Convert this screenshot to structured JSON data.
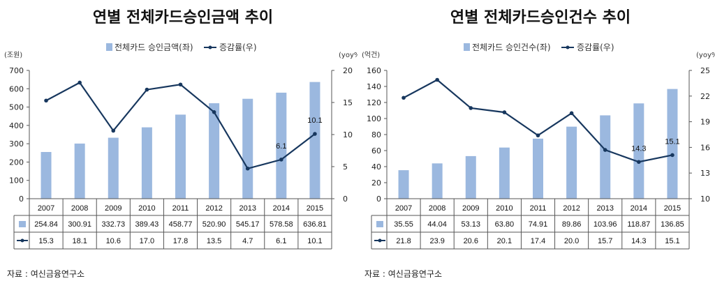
{
  "colors": {
    "bar": "#9bb8df",
    "line": "#17375e",
    "grid": "#cccccc",
    "axis": "#555555"
  },
  "chart_data": [
    {
      "type": "bar",
      "title": "연별 전체카드승인금액 추이",
      "y_left_unit": "(조원)",
      "y_right_unit": "(yoy%)",
      "legend_bar": "전체카드 승인금액(좌)",
      "legend_line": "증감률(우)",
      "categories": [
        "2007",
        "2008",
        "2009",
        "2010",
        "2011",
        "2012",
        "2013",
        "2014",
        "2015"
      ],
      "series": [
        {
          "name": "전체카드 승인금액(좌)",
          "type": "bar",
          "axis": "left",
          "values": [
            254.84,
            300.91,
            332.73,
            389.43,
            458.77,
            520.9,
            545.17,
            578.58,
            636.81
          ],
          "labels": [
            "254.84",
            "300.91",
            "332.73",
            "389.43",
            "458.77",
            "520.90",
            "545.17",
            "578.58",
            "636.81"
          ]
        },
        {
          "name": "증감률(우)",
          "type": "line",
          "axis": "right",
          "values": [
            15.3,
            18.1,
            10.6,
            17.0,
            17.8,
            13.5,
            4.7,
            6.1,
            10.1
          ],
          "labels": [
            "15.3",
            "18.1",
            "10.6",
            "17.0",
            "17.8",
            "13.5",
            "4.7",
            "6.1",
            "10.1"
          ]
        }
      ],
      "ylim_left": [
        0,
        700
      ],
      "ytick_left": [
        0,
        100,
        200,
        300,
        400,
        500,
        600,
        700
      ],
      "ylim_right": [
        0,
        20
      ],
      "ytick_right": [
        0,
        5,
        10,
        15,
        20
      ],
      "annotations": [
        {
          "index": 7,
          "text": "6.1"
        },
        {
          "index": 8,
          "text": "10.1"
        }
      ],
      "source": "자료 : 여신금융연구소"
    },
    {
      "type": "bar",
      "title": "연별 전체카드승인건수 추이",
      "y_left_unit": "(억건)",
      "y_right_unit": "(yoy%)",
      "legend_bar": "전체카드 승인건수(좌)",
      "legend_line": "증감률(우)",
      "categories": [
        "2007",
        "2008",
        "2009",
        "2010",
        "2011",
        "2012",
        "2013",
        "2014",
        "2015"
      ],
      "series": [
        {
          "name": "전체카드 승인건수(좌)",
          "type": "bar",
          "axis": "left",
          "values": [
            35.55,
            44.04,
            53.13,
            63.8,
            74.91,
            89.86,
            103.96,
            118.87,
            136.85
          ],
          "labels": [
            "35.55",
            "44.04",
            "53.13",
            "63.80",
            "74.91",
            "89.86",
            "103.96",
            "118.87",
            "136.85"
          ]
        },
        {
          "name": "증감률(우)",
          "type": "line",
          "axis": "right",
          "values": [
            21.8,
            23.9,
            20.6,
            20.1,
            17.4,
            20.0,
            15.7,
            14.3,
            15.1
          ],
          "labels": [
            "21.8",
            "23.9",
            "20.6",
            "20.1",
            "17.4",
            "20.0",
            "15.7",
            "14.3",
            "15.1"
          ]
        }
      ],
      "ylim_left": [
        0,
        160
      ],
      "ytick_left": [
        0,
        20,
        40,
        60,
        80,
        100,
        120,
        140,
        160
      ],
      "ylim_right": [
        10,
        25
      ],
      "ytick_right": [
        10,
        13,
        16,
        19,
        22,
        25
      ],
      "annotations": [
        {
          "index": 7,
          "text": "14.3"
        },
        {
          "index": 8,
          "text": "15.1"
        }
      ],
      "source": "자료 : 여신금융연구소"
    }
  ]
}
